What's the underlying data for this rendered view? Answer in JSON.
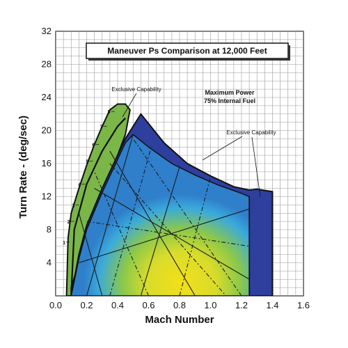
{
  "chart_data": {
    "type": "area",
    "title": "Maneuver Ps Comparison at 12,000 Feet",
    "xlabel": "Mach Number",
    "ylabel": "Turn Rate - (deg/sec)",
    "xlim": [
      0.0,
      1.6
    ],
    "ylim": [
      0,
      32
    ],
    "x_ticks": [
      "0.0",
      "0.2",
      "0.4",
      "0.6",
      "0.8",
      "1.0",
      "1.2",
      "1.4",
      "1.6"
    ],
    "y_ticks": [
      "4",
      "8",
      "12",
      "16",
      "20",
      "24",
      "28",
      "32"
    ],
    "grid": true,
    "annotations": {
      "exclusive_left": "Exclusive Capability",
      "exclusive_right": "Exclusive Capability",
      "power_line1": "Maximum Power",
      "power_line2": "75% Internal Fuel"
    },
    "load_factor_labels": [
      "1",
      "2",
      "3",
      "4",
      "5",
      "6",
      "7",
      "8"
    ],
    "series": [
      {
        "color": "#7ab648",
        "x": [
          0.07,
          0.08,
          0.1,
          0.15,
          0.2,
          0.25,
          0.3,
          0.35,
          0.4,
          0.45,
          0.48,
          0.45,
          0.35,
          0.3,
          0.25,
          0.2,
          0.15,
          0.1,
          0.1
        ],
        "y": [
          0,
          7,
          10,
          13,
          15.8,
          18.3,
          20.5,
          22.5,
          23.2,
          23.2,
          22.5,
          19.5,
          14.5,
          12,
          9.5,
          7,
          4,
          1,
          0
        ]
      },
      {
        "color": "#2e3f9e",
        "x": [
          0.1,
          0.15,
          0.2,
          0.3,
          0.4,
          0.45,
          0.55,
          0.7,
          0.85,
          1.0,
          1.15,
          1.25,
          1.3,
          1.4,
          1.4,
          1.25,
          1.25,
          0.1
        ],
        "y": [
          0,
          5,
          8.5,
          13,
          17,
          19,
          22,
          18.5,
          16,
          14.5,
          13.2,
          12.8,
          12.9,
          12.6,
          0,
          0,
          11.8,
          0
        ]
      }
    ],
    "load_factor_points": [
      {
        "x": 0.09,
        "y": 6.5
      },
      {
        "x": 0.12,
        "y": 9.0
      },
      {
        "x": 0.15,
        "y": 11.0
      },
      {
        "x": 0.19,
        "y": 13.5
      },
      {
        "x": 0.24,
        "y": 16.3
      },
      {
        "x": 0.28,
        "y": 18.3
      },
      {
        "x": 0.33,
        "y": 20.5
      },
      {
        "x": 0.38,
        "y": 22.3
      }
    ]
  }
}
